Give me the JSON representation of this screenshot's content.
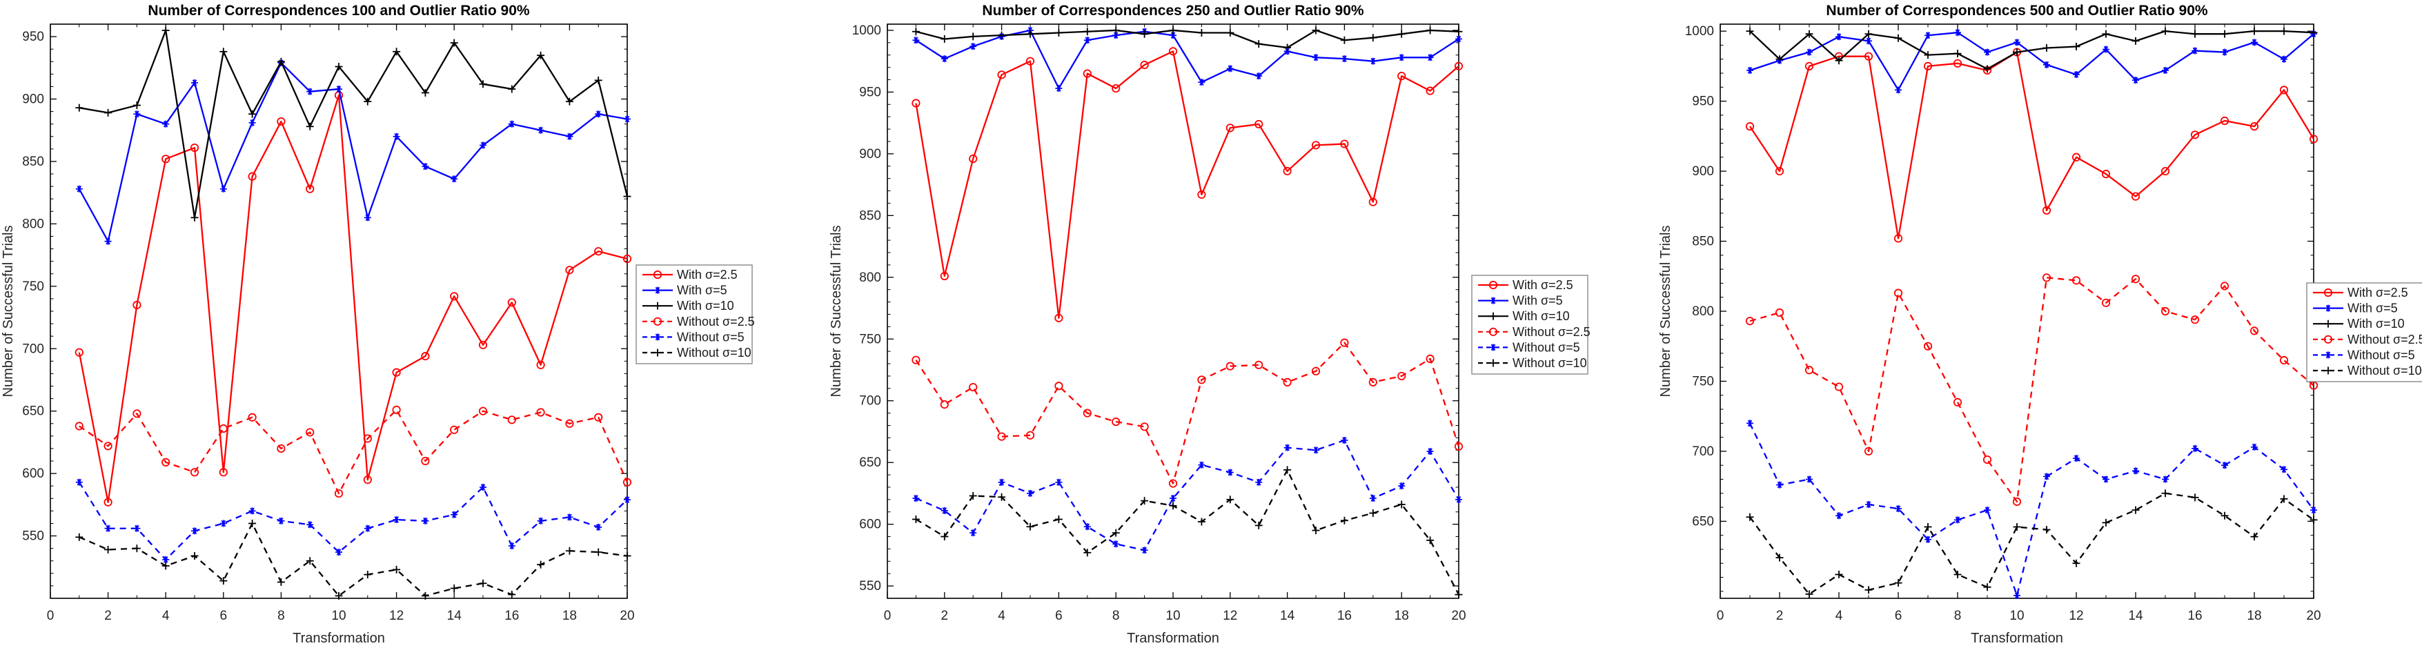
{
  "figure": {
    "background_color": "#ffffff",
    "text_color": "#262626",
    "axis_color": "#000000"
  },
  "chart_data": [
    {
      "type": "line",
      "title": "Number of Correspondences 100 and Outlier Ratio 90%",
      "xlabel": "Transformation",
      "ylabel": "Number of Successful Trials",
      "xlim": [
        0,
        20
      ],
      "ylim": [
        500,
        960
      ],
      "xticks": [
        0,
        2,
        4,
        6,
        8,
        10,
        12,
        14,
        16,
        18,
        20
      ],
      "yticks": [
        550,
        600,
        650,
        700,
        750,
        800,
        850,
        900,
        950
      ],
      "grid": false,
      "legend_position": "right-center",
      "x": [
        1,
        2,
        3,
        4,
        5,
        6,
        7,
        8,
        9,
        10,
        11,
        12,
        13,
        14,
        15,
        16,
        17,
        18,
        19,
        20
      ],
      "series": [
        {
          "name": "With σ=2.5",
          "color": "#ff0000",
          "line_style": "solid",
          "marker": "circle-open",
          "values": [
            697,
            577,
            735,
            852,
            861,
            601,
            838,
            882,
            828,
            903,
            595,
            681,
            694,
            742,
            703,
            737,
            687,
            763,
            778,
            772
          ]
        },
        {
          "name": "With σ=5",
          "color": "#0000ff",
          "line_style": "solid",
          "marker": "asterisk",
          "values": [
            828,
            786,
            888,
            880,
            913,
            828,
            881,
            929,
            906,
            908,
            805,
            870,
            846,
            836,
            863,
            880,
            875,
            870,
            888,
            884
          ]
        },
        {
          "name": "With σ=10",
          "color": "#000000",
          "line_style": "solid",
          "marker": "plus",
          "values": [
            893,
            889,
            895,
            955,
            805,
            938,
            888,
            930,
            878,
            926,
            898,
            938,
            905,
            945,
            912,
            908,
            935,
            898,
            915,
            822
          ]
        },
        {
          "name": "Without σ=2.5",
          "color": "#ff0000",
          "line_style": "dashed",
          "marker": "circle-open",
          "values": [
            638,
            622,
            648,
            609,
            601,
            636,
            645,
            620,
            633,
            584,
            628,
            651,
            610,
            635,
            650,
            643,
            649,
            640,
            645,
            593
          ]
        },
        {
          "name": "Without σ=5",
          "color": "#0000ff",
          "line_style": "dashed",
          "marker": "asterisk",
          "values": [
            593,
            556,
            556,
            531,
            554,
            560,
            570,
            562,
            559,
            537,
            556,
            563,
            562,
            567,
            589,
            542,
            562,
            565,
            557,
            579
          ]
        },
        {
          "name": "Without σ=10",
          "color": "#000000",
          "line_style": "dashed",
          "marker": "plus",
          "values": [
            549,
            539,
            540,
            526,
            534,
            514,
            560,
            513,
            530,
            502,
            519,
            523,
            502,
            508,
            512,
            503,
            527,
            538,
            537,
            534
          ]
        }
      ]
    },
    {
      "type": "line",
      "title": "Number of Correspondences 250 and Outlier Ratio 90%",
      "xlabel": "Transformation",
      "ylabel": "Number of Successful Trials",
      "xlim": [
        0,
        20
      ],
      "ylim": [
        540,
        1005
      ],
      "xticks": [
        0,
        2,
        4,
        6,
        8,
        10,
        12,
        14,
        16,
        18,
        20
      ],
      "yticks": [
        550,
        600,
        650,
        700,
        750,
        800,
        850,
        900,
        950,
        1000
      ],
      "grid": false,
      "legend_position": "right-center",
      "x": [
        1,
        2,
        3,
        4,
        5,
        6,
        7,
        8,
        9,
        10,
        11,
        12,
        13,
        14,
        15,
        16,
        17,
        18,
        19,
        20
      ],
      "series": [
        {
          "name": "With σ=2.5",
          "color": "#ff0000",
          "line_style": "solid",
          "marker": "circle-open",
          "values": [
            941,
            801,
            896,
            964,
            975,
            767,
            965,
            953,
            972,
            983,
            867,
            921,
            924,
            886,
            907,
            908,
            861,
            963,
            951,
            971
          ]
        },
        {
          "name": "With σ=5",
          "color": "#0000ff",
          "line_style": "solid",
          "marker": "asterisk",
          "values": [
            992,
            977,
            987,
            995,
            1000,
            953,
            992,
            996,
            999,
            996,
            958,
            969,
            963,
            983,
            978,
            977,
            975,
            978,
            978,
            993
          ]
        },
        {
          "name": "With σ=10",
          "color": "#000000",
          "line_style": "solid",
          "marker": "plus",
          "values": [
            999,
            993,
            995,
            996,
            997,
            998,
            999,
            1000,
            997,
            1000,
            998,
            998,
            989,
            986,
            1000,
            992,
            994,
            997,
            1000,
            999
          ]
        },
        {
          "name": "Without σ=2.5",
          "color": "#ff0000",
          "line_style": "dashed",
          "marker": "circle-open",
          "values": [
            733,
            697,
            711,
            671,
            672,
            712,
            690,
            683,
            679,
            633,
            717,
            728,
            729,
            715,
            724,
            747,
            715,
            720,
            734,
            663
          ]
        },
        {
          "name": "Without σ=5",
          "color": "#0000ff",
          "line_style": "dashed",
          "marker": "asterisk",
          "values": [
            621,
            611,
            593,
            634,
            625,
            634,
            598,
            584,
            579,
            621,
            648,
            642,
            634,
            662,
            660,
            668,
            621,
            631,
            659,
            620
          ]
        },
        {
          "name": "Without σ=10",
          "color": "#000000",
          "line_style": "dashed",
          "marker": "plus",
          "values": [
            604,
            590,
            623,
            622,
            598,
            604,
            577,
            593,
            619,
            615,
            602,
            620,
            599,
            644,
            595,
            603,
            609,
            616,
            587,
            543
          ]
        }
      ]
    },
    {
      "type": "line",
      "title": "Number of Correspondences 500 and Outlier Ratio 90%",
      "xlabel": "Transformation",
      "ylabel": "Number of Successful Trials",
      "xlim": [
        0,
        20
      ],
      "ylim": [
        595,
        1005
      ],
      "xticks": [
        0,
        2,
        4,
        6,
        8,
        10,
        12,
        14,
        16,
        18,
        20
      ],
      "yticks": [
        650,
        700,
        750,
        800,
        850,
        900,
        950,
        1000
      ],
      "grid": false,
      "legend_position": "right-center",
      "x": [
        1,
        2,
        3,
        4,
        5,
        6,
        7,
        8,
        9,
        10,
        11,
        12,
        13,
        14,
        15,
        16,
        17,
        18,
        19,
        20
      ],
      "series": [
        {
          "name": "With σ=2.5",
          "color": "#ff0000",
          "line_style": "solid",
          "marker": "circle-open",
          "values": [
            932,
            900,
            975,
            982,
            982,
            852,
            975,
            977,
            972,
            985,
            872,
            910,
            898,
            882,
            900,
            926,
            936,
            932,
            958,
            923
          ]
        },
        {
          "name": "With σ=5",
          "color": "#0000ff",
          "line_style": "solid",
          "marker": "asterisk",
          "values": [
            972,
            979,
            985,
            996,
            993,
            958,
            997,
            999,
            985,
            992,
            976,
            969,
            987,
            965,
            972,
            986,
            985,
            992,
            980,
            998
          ]
        },
        {
          "name": "With σ=10",
          "color": "#000000",
          "line_style": "solid",
          "marker": "plus",
          "values": [
            1000,
            980,
            998,
            979,
            998,
            995,
            983,
            984,
            973,
            985,
            988,
            989,
            998,
            993,
            1000,
            998,
            998,
            1000,
            1000,
            999
          ]
        },
        {
          "name": "Without σ=2.5",
          "color": "#ff0000",
          "line_style": "dashed",
          "marker": "circle-open",
          "values": [
            793,
            799,
            758,
            746,
            700,
            813,
            775,
            735,
            694,
            664,
            824,
            822,
            806,
            823,
            800,
            794,
            818,
            786,
            765,
            747
          ]
        },
        {
          "name": "Without σ=5",
          "color": "#0000ff",
          "line_style": "dashed",
          "marker": "asterisk",
          "values": [
            720,
            676,
            680,
            654,
            662,
            659,
            637,
            651,
            658,
            597,
            682,
            695,
            680,
            686,
            680,
            702,
            690,
            703,
            687,
            658
          ]
        },
        {
          "name": "Without σ=10",
          "color": "#000000",
          "line_style": "dashed",
          "marker": "plus",
          "values": [
            653,
            624,
            598,
            612,
            601,
            606,
            646,
            612,
            603,
            646,
            644,
            620,
            649,
            658,
            670,
            667,
            654,
            639,
            666,
            651
          ]
        }
      ]
    }
  ],
  "legend": {
    "border_color": "#7f7f7f",
    "background": "#ffffff",
    "items": [
      "With σ=2.5",
      "With σ=5",
      "With σ=10",
      "Without σ=2.5",
      "Without σ=5",
      "Without σ=10"
    ]
  }
}
